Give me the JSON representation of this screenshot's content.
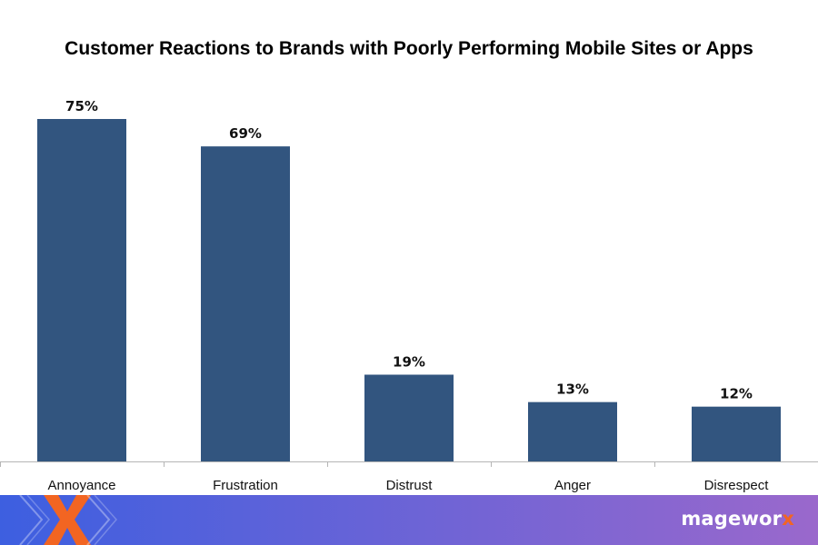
{
  "chart_data": {
    "type": "bar",
    "title": "Customer Reactions to Brands with Poorly Performing Mobile Sites or Apps",
    "categories": [
      "Annoyance",
      "Frustration",
      "Distrust",
      "Anger",
      "Disrespect"
    ],
    "values": [
      75,
      69,
      19,
      13,
      12
    ],
    "value_labels": [
      "75%",
      "69%",
      "19%",
      "13%",
      "12%"
    ],
    "xlabel": "",
    "ylabel": "",
    "ylim": [
      0,
      75
    ],
    "grid": false,
    "bar_color": "#32557f"
  },
  "footer": {
    "brand_main": "magewor",
    "brand_accent": "x",
    "gradient_start": "#3d5fe0",
    "gradient_end": "#9a68cc",
    "logo_color": "#f26522"
  }
}
